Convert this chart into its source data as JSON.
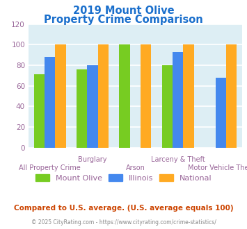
{
  "title_line1": "2019 Mount Olive",
  "title_line2": "Property Crime Comparison",
  "title_color": "#1a6fcc",
  "categories": [
    "All Property Crime",
    "Burglary",
    "Arson",
    "Larceny & Theft",
    "Motor Vehicle Theft"
  ],
  "mount_olive": [
    71,
    76,
    100,
    80,
    0
  ],
  "illinois": [
    88,
    80,
    0,
    93,
    68
  ],
  "national": [
    100,
    100,
    100,
    100,
    100
  ],
  "color_mount_olive": "#77cc22",
  "color_illinois": "#4488ee",
  "color_national": "#ffaa22",
  "ylim": [
    0,
    120
  ],
  "yticks": [
    0,
    20,
    40,
    60,
    80,
    100,
    120
  ],
  "legend_labels": [
    "Mount Olive",
    "Illinois",
    "National"
  ],
  "note_text": "Compared to U.S. average. (U.S. average equals 100)",
  "note_color": "#cc4400",
  "copyright_text": "© 2025 CityRating.com - https://www.cityrating.com/crime-statistics/",
  "copyright_color": "#888888",
  "background_color": "#ddeef4",
  "bar_width": 0.25,
  "grid_color": "#ffffff",
  "label_color": "#996699",
  "tick_color": "#996699"
}
